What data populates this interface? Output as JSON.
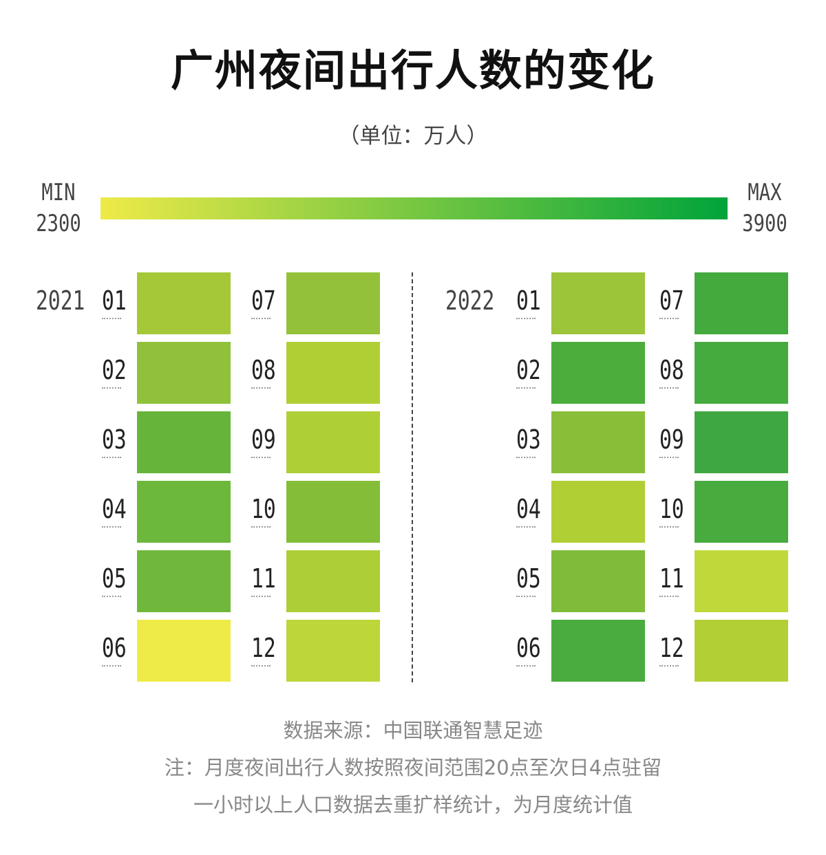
{
  "header": {
    "title": "广州夜间出行人数的变化",
    "subtitle": "（单位：万人）"
  },
  "legend": {
    "min_label": "MIN",
    "min_value": "2300",
    "max_label": "MAX",
    "max_value": "3900",
    "color_min": "#eeea48",
    "color_max": "#00a43b"
  },
  "chart_data": {
    "type": "heatmap",
    "title": "广州夜间出行人数的变化",
    "unit": "万人",
    "scale": {
      "min": 2300,
      "max": 3900
    },
    "years": [
      {
        "year": "2021",
        "months": [
          "01",
          "02",
          "03",
          "04",
          "05",
          "06",
          "07",
          "08",
          "09",
          "10",
          "11",
          "12"
        ],
        "colors": [
          "#a5c838",
          "#8fc23a",
          "#66b53a",
          "#6cb83b",
          "#70b83c",
          "#eeea48",
          "#93c23a",
          "#b0cf35",
          "#afcf36",
          "#84bd38",
          "#acce37",
          "#bdd639"
        ]
      },
      {
        "year": "2022",
        "months": [
          "01",
          "02",
          "03",
          "04",
          "05",
          "06",
          "07",
          "08",
          "09",
          "10",
          "11",
          "12"
        ],
        "colors": [
          "#9dc53a",
          "#4cad3d",
          "#89bf38",
          "#b0cf34",
          "#80bb3a",
          "#4aac3e",
          "#44aa3e",
          "#46ab3e",
          "#3fa741",
          "#47ab3e",
          "#c0d839",
          "#b2d036"
        ]
      }
    ]
  },
  "notes": {
    "source": "数据来源：中国联通智慧足迹",
    "note_line1": "注：月度夜间出行人数按照夜间范围20点至次日4点驻留",
    "note_line2": "一小时以上人口数据去重扩样统计，为月度统计值"
  }
}
